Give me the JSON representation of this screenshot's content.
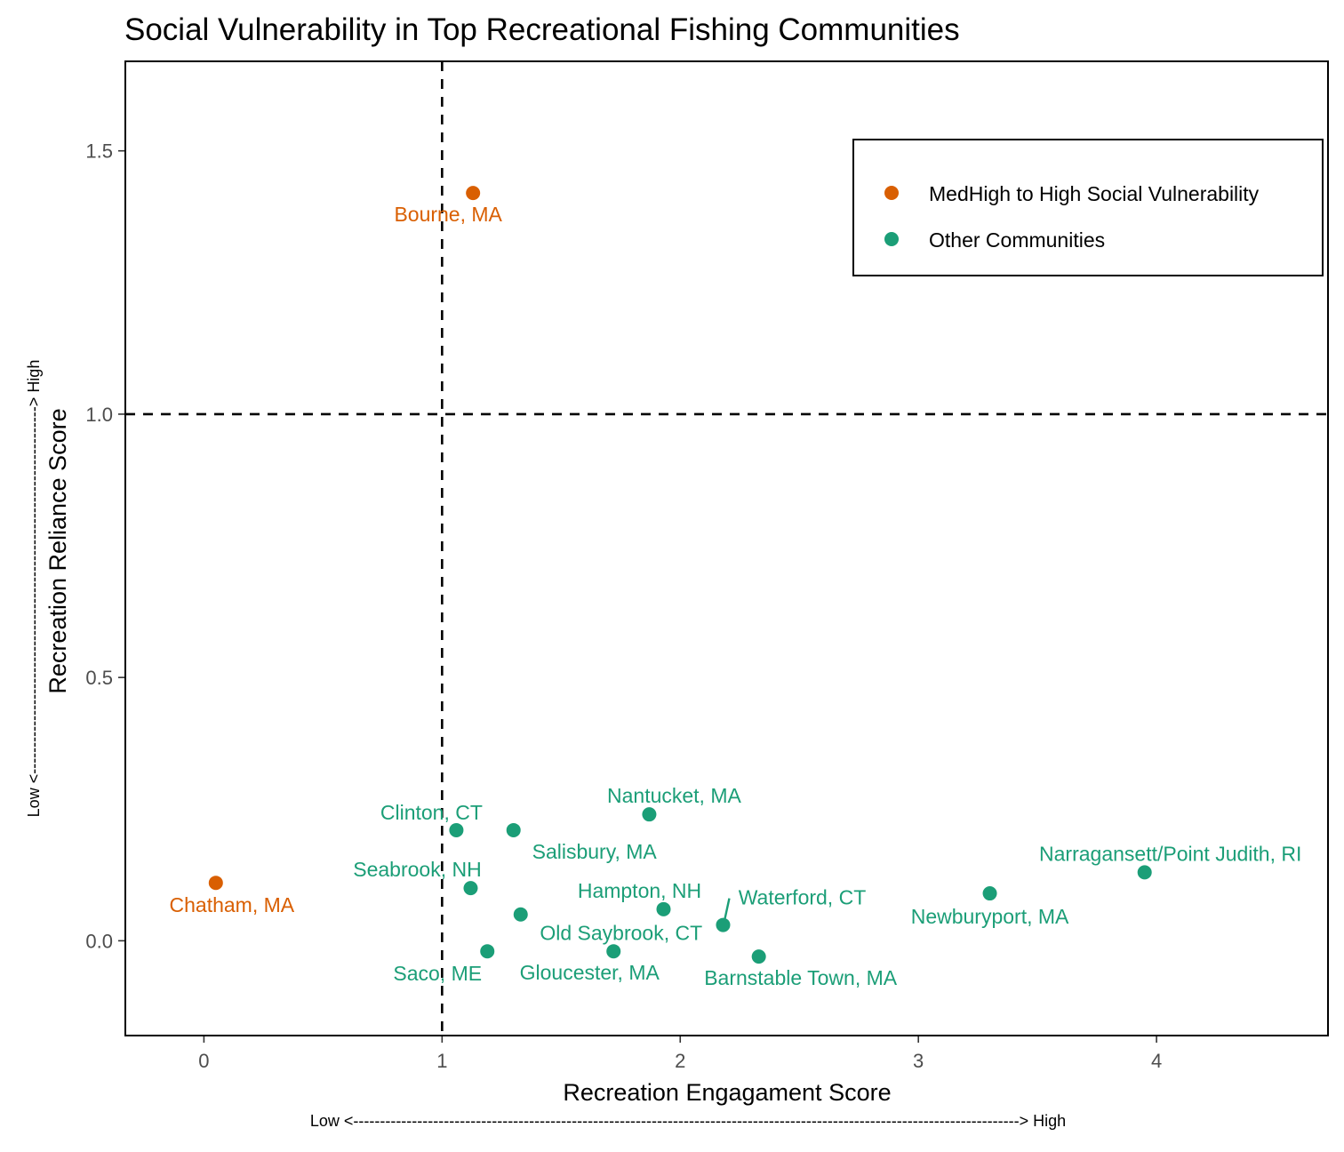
{
  "chart_data": {
    "type": "scatter",
    "title": "Social Vulnerability in Top Recreational Fishing Communities",
    "xlabel": "Recreation Engagament Score",
    "ylabel": "Recreation Reliance Score",
    "x_arrow_label": "Low <-----------------------------------------------------------------------------------------------------------------------------> High",
    "y_arrow_label": "Low <---------------------------------------------------------------------> High",
    "xlim": [
      -0.33,
      4.72
    ],
    "ylim": [
      -0.18,
      1.67
    ],
    "x_ticks": [
      0,
      1,
      2,
      3,
      4
    ],
    "x_tick_labels": [
      "0",
      "1",
      "2",
      "3",
      "4"
    ],
    "y_ticks": [
      0.0,
      0.5,
      1.0,
      1.5
    ],
    "y_tick_labels": [
      "0.0",
      "0.5",
      "1.0",
      "1.5"
    ],
    "reference_lines": {
      "x": 1,
      "y": 1,
      "style": "dashed"
    },
    "legend_placement": "top-right",
    "grid": false,
    "series": [
      {
        "name": "MedHigh to High Social Vulnerability",
        "color": "#D95F02",
        "points": [
          {
            "label": "Bourne, MA",
            "x": 1.13,
            "y": 1.42
          },
          {
            "label": "Chatham, MA",
            "x": 0.05,
            "y": 0.11
          }
        ]
      },
      {
        "name": "Other Communities",
        "color": "#1B9E77",
        "points": [
          {
            "label": "Nantucket, MA",
            "x": 1.87,
            "y": 0.24
          },
          {
            "label": "Clinton, CT",
            "x": 1.06,
            "y": 0.21
          },
          {
            "label": "Salisbury, MA",
            "x": 1.3,
            "y": 0.21
          },
          {
            "label": "Narragansett/Point Judith, RI",
            "x": 3.95,
            "y": 0.13
          },
          {
            "label": "Seabrook, NH",
            "x": 1.12,
            "y": 0.1
          },
          {
            "label": "Newburyport, MA",
            "x": 3.3,
            "y": 0.09
          },
          {
            "label": "Hampton, NH",
            "x": 1.93,
            "y": 0.06
          },
          {
            "label": "Waterford, CT",
            "x": 2.18,
            "y": 0.03
          },
          {
            "label": "Old Saybrook, CT",
            "x": 1.33,
            "y": 0.05
          },
          {
            "label": "Saco, ME",
            "x": 1.19,
            "y": -0.02
          },
          {
            "label": "Gloucester, MA",
            "x": 1.72,
            "y": -0.02
          },
          {
            "label": "Barnstable Town, MA",
            "x": 2.33,
            "y": -0.03
          }
        ]
      }
    ]
  }
}
